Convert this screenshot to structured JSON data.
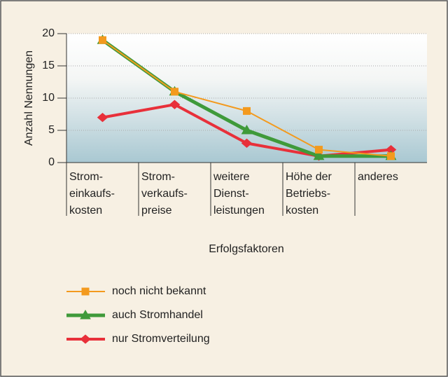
{
  "chart_data": {
    "type": "line",
    "x_label": "Erfolgsfaktoren",
    "y_label": "Anzahl Nennungen",
    "categories": [
      "Strom-\neinkaufs-\nkosten",
      "Strom-\nverkaufs-\npreise",
      "weitere\nDienst-\nleistungen",
      "Höhe der\nBetriebs-\nkosten",
      "anderes"
    ],
    "series": [
      {
        "name": "noch nicht bekannt",
        "color": "#f39a1e",
        "marker": "square",
        "line_width": 2,
        "values": [
          19,
          11,
          8,
          2,
          1
        ]
      },
      {
        "name": "auch Stromhandel",
        "color": "#3f9a3a",
        "marker": "triangle",
        "line_width": 5,
        "values": [
          19,
          11,
          5,
          1,
          1
        ]
      },
      {
        "name": "nur Stromverteilung",
        "color": "#e8303a",
        "marker": "diamond",
        "line_width": 4,
        "values": [
          7,
          9,
          3,
          1,
          2
        ]
      }
    ],
    "ylim": [
      0,
      20
    ],
    "yticks": [
      0,
      5,
      10,
      15,
      20
    ],
    "grid": true
  }
}
